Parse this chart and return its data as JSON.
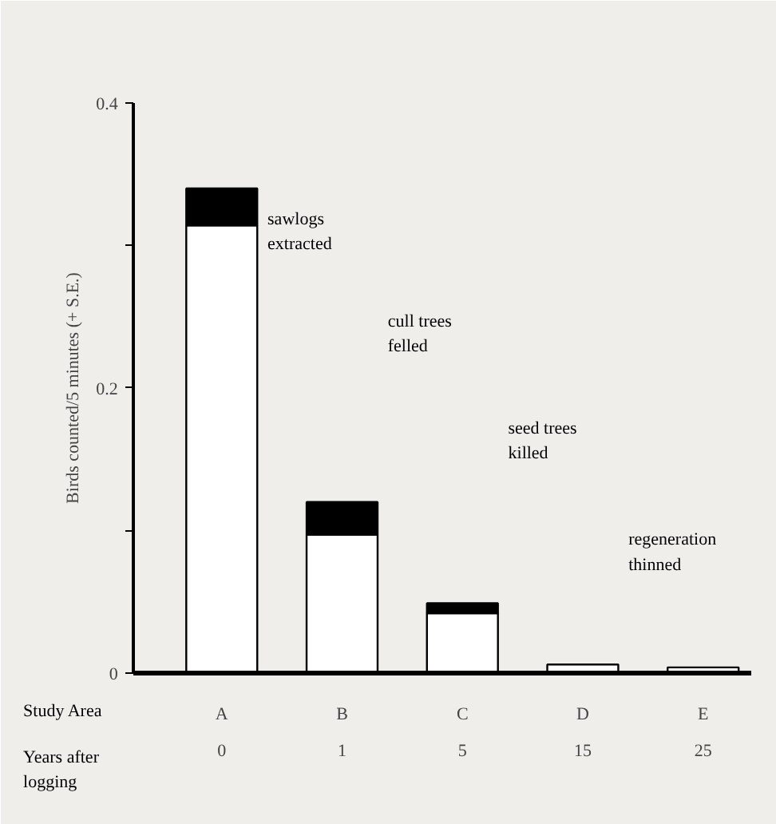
{
  "chart_data": {
    "type": "bar",
    "ylabel": "Birds counted/5 minutes (+ S.E.)",
    "xlabel": "Study Area",
    "categories": [
      "A",
      "B",
      "C",
      "D",
      "E"
    ],
    "stacked": true,
    "series": [
      {
        "color": "#ffffff",
        "values": [
          0.314,
          0.097,
          0.042,
          0.006,
          0.004
        ]
      },
      {
        "color": "#000000",
        "values": [
          0.026,
          0.023,
          0.007,
          null,
          null
        ]
      }
    ],
    "ylim": [
      0,
      0.4
    ],
    "yticks": [
      0,
      {
        "value": 0.1,
        "label": null
      },
      0.2,
      {
        "value": 0.3,
        "label": null
      },
      0.4
    ],
    "grid": false,
    "annotations": [
      "sawlogs\nextracted",
      "cull trees\nfelled",
      "seed trees\nkilled",
      "regeneration\nthinned",
      "Years after\nlogging",
      "0",
      "1",
      "5",
      "15",
      "25"
    ]
  }
}
